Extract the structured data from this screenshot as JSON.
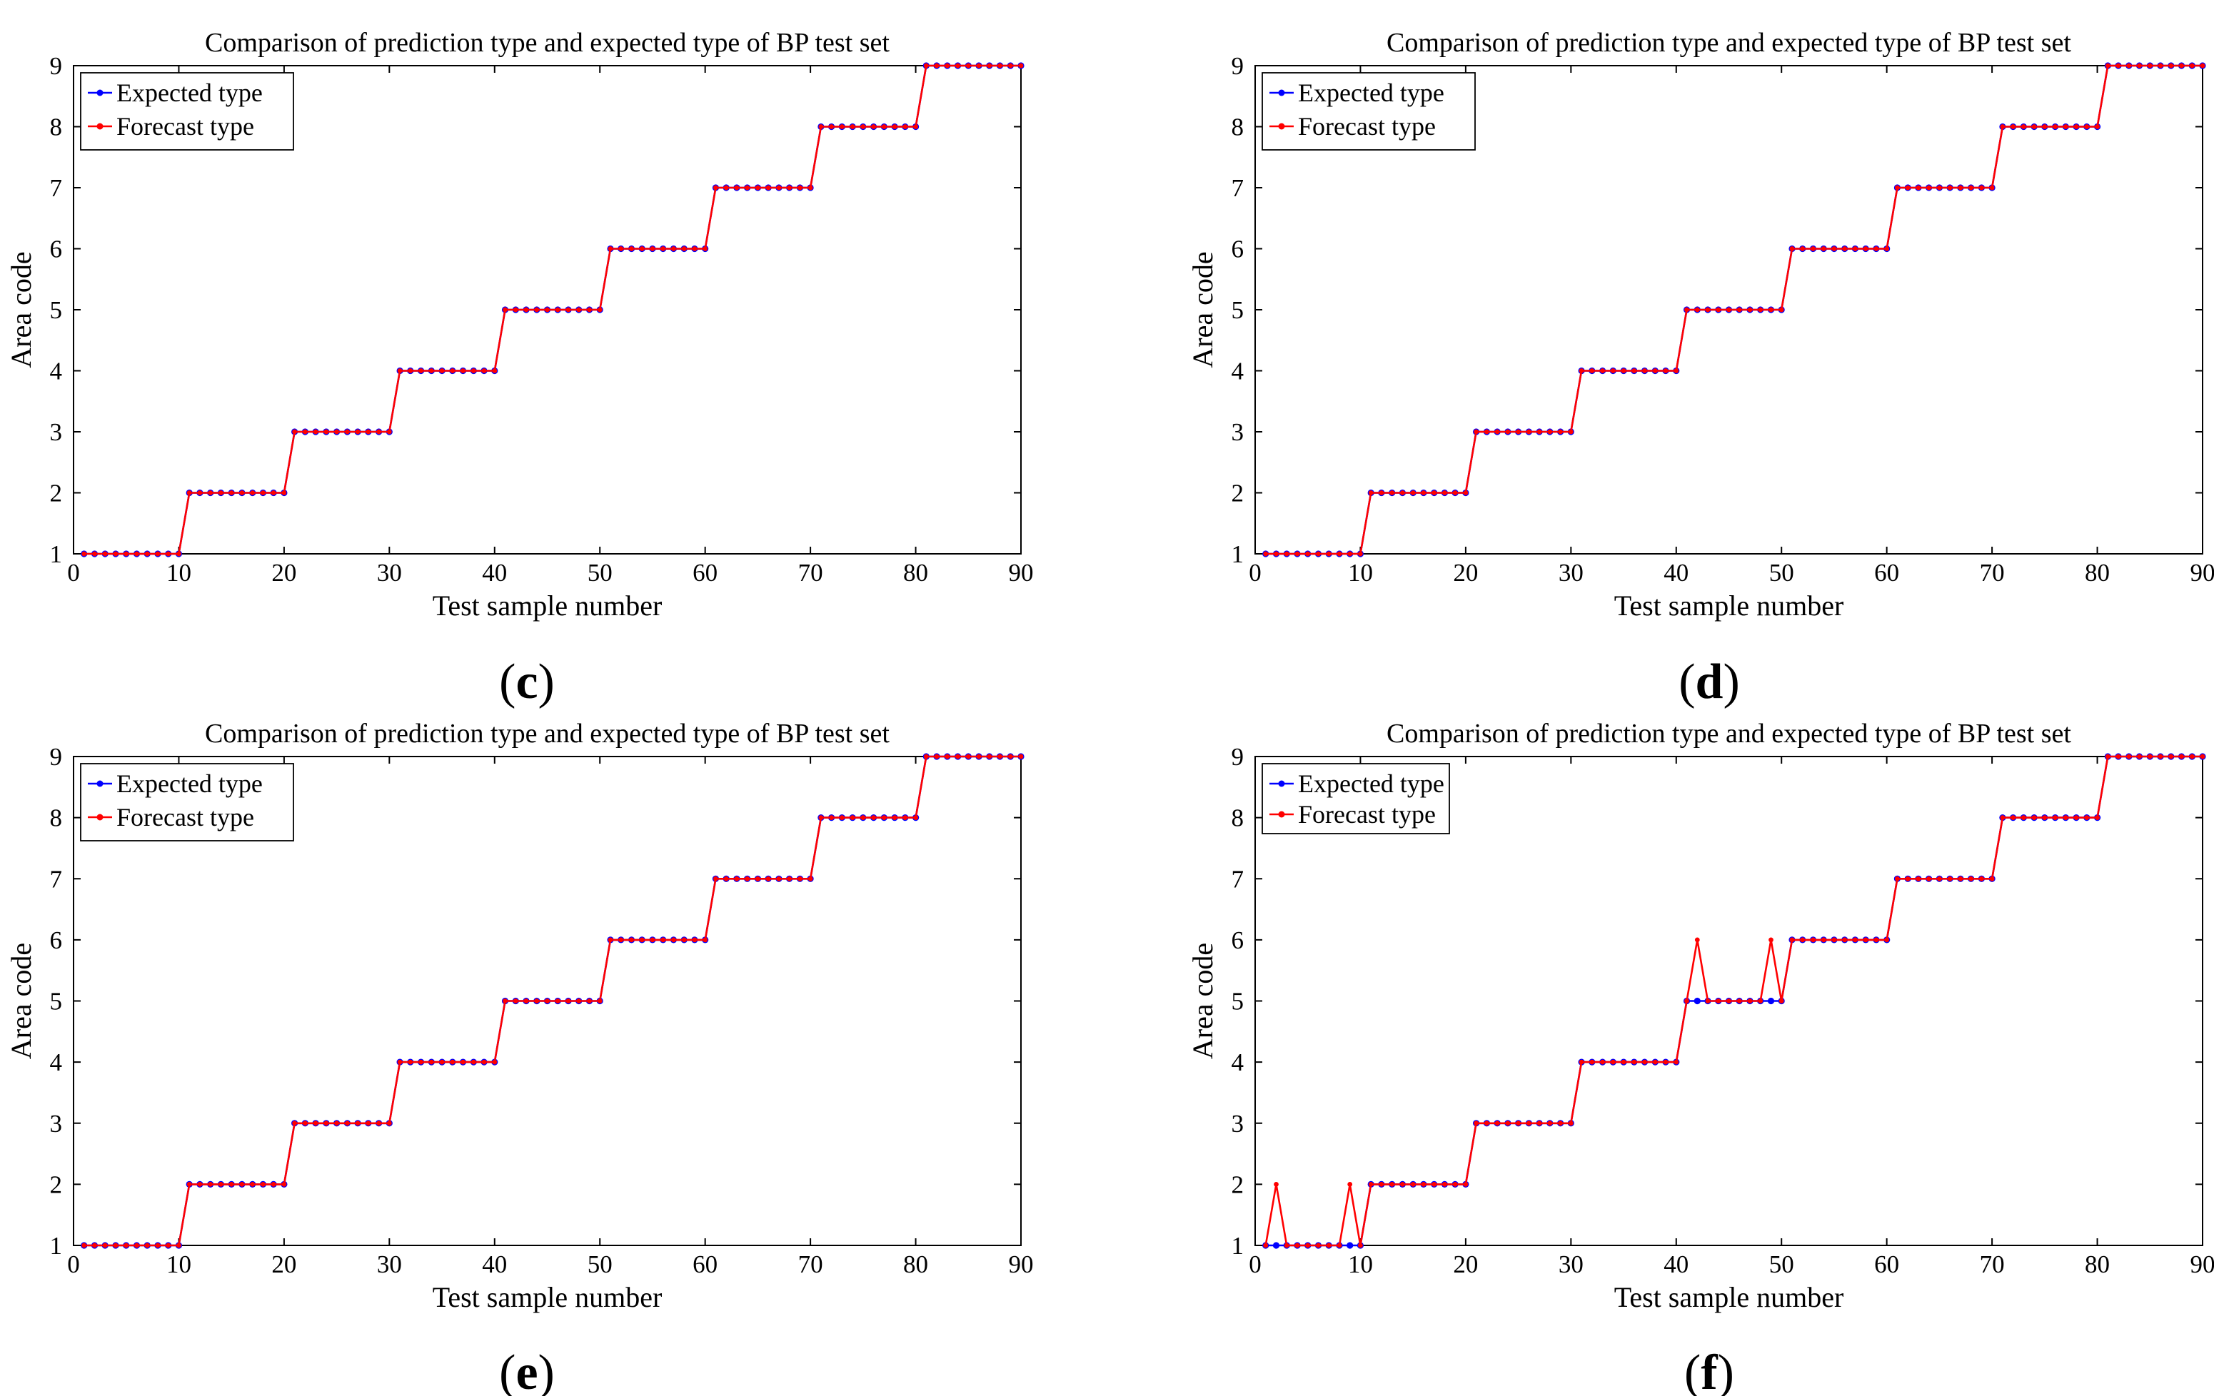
{
  "colors": {
    "expected": "#0000ff",
    "forecast": "#ff0000",
    "axis": "#000000",
    "background": "#ffffff"
  },
  "panel_labels": {
    "c": {
      "open": "(",
      "letter": "c",
      "close": ")"
    },
    "d": {
      "open": "(",
      "letter": "d",
      "close": ")"
    },
    "e": {
      "open": "(",
      "letter": "e",
      "close": ")"
    },
    "f": {
      "open": "(",
      "letter": "f",
      "close": ")"
    }
  },
  "chart_data": [
    {
      "panel": "c",
      "type": "line",
      "title": "Comparison of prediction type and expected type of BP test set",
      "xlabel": "Test sample number",
      "ylabel": "Area code",
      "xlim": [
        0,
        90
      ],
      "ylim": [
        1,
        9
      ],
      "xticks": [
        0,
        10,
        20,
        30,
        40,
        50,
        60,
        70,
        80,
        90
      ],
      "yticks": [
        1,
        2,
        3,
        4,
        5,
        6,
        7,
        8,
        9
      ],
      "grid": false,
      "legend": "top-left",
      "x": [
        1,
        2,
        3,
        4,
        5,
        6,
        7,
        8,
        9,
        10,
        11,
        12,
        13,
        14,
        15,
        16,
        17,
        18,
        19,
        20,
        21,
        22,
        23,
        24,
        25,
        26,
        27,
        28,
        29,
        30,
        31,
        32,
        33,
        34,
        35,
        36,
        37,
        38,
        39,
        40,
        41,
        42,
        43,
        44,
        45,
        46,
        47,
        48,
        49,
        50,
        51,
        52,
        53,
        54,
        55,
        56,
        57,
        58,
        59,
        60,
        61,
        62,
        63,
        64,
        65,
        66,
        67,
        68,
        69,
        70,
        71,
        72,
        73,
        74,
        75,
        76,
        77,
        78,
        79,
        80,
        81,
        82,
        83,
        84,
        85,
        86,
        87,
        88,
        89,
        90
      ],
      "series": [
        {
          "name": "Expected type",
          "color": "#0000ff",
          "values": [
            1,
            1,
            1,
            1,
            1,
            1,
            1,
            1,
            1,
            1,
            2,
            2,
            2,
            2,
            2,
            2,
            2,
            2,
            2,
            2,
            3,
            3,
            3,
            3,
            3,
            3,
            3,
            3,
            3,
            3,
            4,
            4,
            4,
            4,
            4,
            4,
            4,
            4,
            4,
            4,
            5,
            5,
            5,
            5,
            5,
            5,
            5,
            5,
            5,
            5,
            6,
            6,
            6,
            6,
            6,
            6,
            6,
            6,
            6,
            6,
            7,
            7,
            7,
            7,
            7,
            7,
            7,
            7,
            7,
            7,
            8,
            8,
            8,
            8,
            8,
            8,
            8,
            8,
            8,
            8,
            9,
            9,
            9,
            9,
            9,
            9,
            9,
            9,
            9,
            9
          ]
        },
        {
          "name": "Forecast type",
          "color": "#ff0000",
          "values": [
            1,
            1,
            1,
            1,
            1,
            1,
            1,
            1,
            1,
            1,
            2,
            2,
            2,
            2,
            2,
            2,
            2,
            2,
            2,
            2,
            3,
            3,
            3,
            3,
            3,
            3,
            3,
            3,
            3,
            3,
            4,
            4,
            4,
            4,
            4,
            4,
            4,
            4,
            4,
            4,
            5,
            5,
            5,
            5,
            5,
            5,
            5,
            5,
            5,
            5,
            6,
            6,
            6,
            6,
            6,
            6,
            6,
            6,
            6,
            6,
            7,
            7,
            7,
            7,
            7,
            7,
            7,
            7,
            7,
            7,
            8,
            8,
            8,
            8,
            8,
            8,
            8,
            8,
            8,
            8,
            9,
            9,
            9,
            9,
            9,
            9,
            9,
            9,
            9,
            9
          ]
        }
      ]
    },
    {
      "panel": "d",
      "type": "line",
      "title": "Comparison of prediction type and expected type of BP test set",
      "xlabel": "Test sample number",
      "ylabel": "Area code",
      "xlim": [
        0,
        90
      ],
      "ylim": [
        1,
        9
      ],
      "xticks": [
        0,
        10,
        20,
        30,
        40,
        50,
        60,
        70,
        80,
        90
      ],
      "yticks": [
        1,
        2,
        3,
        4,
        5,
        6,
        7,
        8,
        9
      ],
      "grid": false,
      "legend": "top-left",
      "x": [
        1,
        2,
        3,
        4,
        5,
        6,
        7,
        8,
        9,
        10,
        11,
        12,
        13,
        14,
        15,
        16,
        17,
        18,
        19,
        20,
        21,
        22,
        23,
        24,
        25,
        26,
        27,
        28,
        29,
        30,
        31,
        32,
        33,
        34,
        35,
        36,
        37,
        38,
        39,
        40,
        41,
        42,
        43,
        44,
        45,
        46,
        47,
        48,
        49,
        50,
        51,
        52,
        53,
        54,
        55,
        56,
        57,
        58,
        59,
        60,
        61,
        62,
        63,
        64,
        65,
        66,
        67,
        68,
        69,
        70,
        71,
        72,
        73,
        74,
        75,
        76,
        77,
        78,
        79,
        80,
        81,
        82,
        83,
        84,
        85,
        86,
        87,
        88,
        89,
        90
      ],
      "series": [
        {
          "name": "Expected type",
          "color": "#0000ff",
          "values": [
            1,
            1,
            1,
            1,
            1,
            1,
            1,
            1,
            1,
            1,
            2,
            2,
            2,
            2,
            2,
            2,
            2,
            2,
            2,
            2,
            3,
            3,
            3,
            3,
            3,
            3,
            3,
            3,
            3,
            3,
            4,
            4,
            4,
            4,
            4,
            4,
            4,
            4,
            4,
            4,
            5,
            5,
            5,
            5,
            5,
            5,
            5,
            5,
            5,
            5,
            6,
            6,
            6,
            6,
            6,
            6,
            6,
            6,
            6,
            6,
            7,
            7,
            7,
            7,
            7,
            7,
            7,
            7,
            7,
            7,
            8,
            8,
            8,
            8,
            8,
            8,
            8,
            8,
            8,
            8,
            9,
            9,
            9,
            9,
            9,
            9,
            9,
            9,
            9,
            9
          ]
        },
        {
          "name": "Forecast type",
          "color": "#ff0000",
          "values": [
            1,
            1,
            1,
            1,
            1,
            1,
            1,
            1,
            1,
            1,
            2,
            2,
            2,
            2,
            2,
            2,
            2,
            2,
            2,
            2,
            3,
            3,
            3,
            3,
            3,
            3,
            3,
            3,
            3,
            3,
            4,
            4,
            4,
            4,
            4,
            4,
            4,
            4,
            4,
            4,
            5,
            5,
            5,
            5,
            5,
            5,
            5,
            5,
            5,
            5,
            6,
            6,
            6,
            6,
            6,
            6,
            6,
            6,
            6,
            6,
            7,
            7,
            7,
            7,
            7,
            7,
            7,
            7,
            7,
            7,
            8,
            8,
            8,
            8,
            8,
            8,
            8,
            8,
            8,
            8,
            9,
            9,
            9,
            9,
            9,
            9,
            9,
            9,
            9,
            9
          ]
        }
      ]
    },
    {
      "panel": "e",
      "type": "line",
      "title": "Comparison of prediction type and expected type of BP test set",
      "xlabel": "Test sample number",
      "ylabel": "Area code",
      "xlim": [
        0,
        90
      ],
      "ylim": [
        1,
        9
      ],
      "xticks": [
        0,
        10,
        20,
        30,
        40,
        50,
        60,
        70,
        80,
        90
      ],
      "yticks": [
        1,
        2,
        3,
        4,
        5,
        6,
        7,
        8,
        9
      ],
      "grid": false,
      "legend": "top-left",
      "x": [
        1,
        2,
        3,
        4,
        5,
        6,
        7,
        8,
        9,
        10,
        11,
        12,
        13,
        14,
        15,
        16,
        17,
        18,
        19,
        20,
        21,
        22,
        23,
        24,
        25,
        26,
        27,
        28,
        29,
        30,
        31,
        32,
        33,
        34,
        35,
        36,
        37,
        38,
        39,
        40,
        41,
        42,
        43,
        44,
        45,
        46,
        47,
        48,
        49,
        50,
        51,
        52,
        53,
        54,
        55,
        56,
        57,
        58,
        59,
        60,
        61,
        62,
        63,
        64,
        65,
        66,
        67,
        68,
        69,
        70,
        71,
        72,
        73,
        74,
        75,
        76,
        77,
        78,
        79,
        80,
        81,
        82,
        83,
        84,
        85,
        86,
        87,
        88,
        89,
        90
      ],
      "series": [
        {
          "name": "Expected type",
          "color": "#0000ff",
          "values": [
            1,
            1,
            1,
            1,
            1,
            1,
            1,
            1,
            1,
            1,
            2,
            2,
            2,
            2,
            2,
            2,
            2,
            2,
            2,
            2,
            3,
            3,
            3,
            3,
            3,
            3,
            3,
            3,
            3,
            3,
            4,
            4,
            4,
            4,
            4,
            4,
            4,
            4,
            4,
            4,
            5,
            5,
            5,
            5,
            5,
            5,
            5,
            5,
            5,
            5,
            6,
            6,
            6,
            6,
            6,
            6,
            6,
            6,
            6,
            6,
            7,
            7,
            7,
            7,
            7,
            7,
            7,
            7,
            7,
            7,
            8,
            8,
            8,
            8,
            8,
            8,
            8,
            8,
            8,
            8,
            9,
            9,
            9,
            9,
            9,
            9,
            9,
            9,
            9,
            9
          ]
        },
        {
          "name": "Forecast type",
          "color": "#ff0000",
          "values": [
            1,
            1,
            1,
            1,
            1,
            1,
            1,
            1,
            1,
            1,
            2,
            2,
            2,
            2,
            2,
            2,
            2,
            2,
            2,
            2,
            3,
            3,
            3,
            3,
            3,
            3,
            3,
            3,
            3,
            3,
            4,
            4,
            4,
            4,
            4,
            4,
            4,
            4,
            4,
            4,
            5,
            5,
            5,
            5,
            5,
            5,
            5,
            5,
            5,
            5,
            6,
            6,
            6,
            6,
            6,
            6,
            6,
            6,
            6,
            6,
            7,
            7,
            7,
            7,
            7,
            7,
            7,
            7,
            7,
            7,
            8,
            8,
            8,
            8,
            8,
            8,
            8,
            8,
            8,
            8,
            9,
            9,
            9,
            9,
            9,
            9,
            9,
            9,
            9,
            9
          ]
        }
      ]
    },
    {
      "panel": "f",
      "type": "line",
      "title": "Comparison of prediction type and expected type of BP test set",
      "xlabel": "Test sample number",
      "ylabel": "Area code",
      "xlim": [
        0,
        90
      ],
      "ylim": [
        1,
        9
      ],
      "xticks": [
        0,
        10,
        20,
        30,
        40,
        50,
        60,
        70,
        80,
        90
      ],
      "yticks": [
        1,
        2,
        3,
        4,
        5,
        6,
        7,
        8,
        9
      ],
      "grid": false,
      "legend": "top-left",
      "x": [
        1,
        2,
        3,
        4,
        5,
        6,
        7,
        8,
        9,
        10,
        11,
        12,
        13,
        14,
        15,
        16,
        17,
        18,
        19,
        20,
        21,
        22,
        23,
        24,
        25,
        26,
        27,
        28,
        29,
        30,
        31,
        32,
        33,
        34,
        35,
        36,
        37,
        38,
        39,
        40,
        41,
        42,
        43,
        44,
        45,
        46,
        47,
        48,
        49,
        50,
        51,
        52,
        53,
        54,
        55,
        56,
        57,
        58,
        59,
        60,
        61,
        62,
        63,
        64,
        65,
        66,
        67,
        68,
        69,
        70,
        71,
        72,
        73,
        74,
        75,
        76,
        77,
        78,
        79,
        80,
        81,
        82,
        83,
        84,
        85,
        86,
        87,
        88,
        89,
        90
      ],
      "series": [
        {
          "name": "Expected type",
          "color": "#0000ff",
          "values": [
            1,
            1,
            1,
            1,
            1,
            1,
            1,
            1,
            1,
            1,
            2,
            2,
            2,
            2,
            2,
            2,
            2,
            2,
            2,
            2,
            3,
            3,
            3,
            3,
            3,
            3,
            3,
            3,
            3,
            3,
            4,
            4,
            4,
            4,
            4,
            4,
            4,
            4,
            4,
            4,
            5,
            5,
            5,
            5,
            5,
            5,
            5,
            5,
            5,
            5,
            6,
            6,
            6,
            6,
            6,
            6,
            6,
            6,
            6,
            6,
            7,
            7,
            7,
            7,
            7,
            7,
            7,
            7,
            7,
            7,
            8,
            8,
            8,
            8,
            8,
            8,
            8,
            8,
            8,
            8,
            9,
            9,
            9,
            9,
            9,
            9,
            9,
            9,
            9,
            9
          ]
        },
        {
          "name": "Forecast type",
          "color": "#ff0000",
          "values": [
            1,
            2,
            1,
            1,
            1,
            1,
            1,
            1,
            2,
            1,
            2,
            2,
            2,
            2,
            2,
            2,
            2,
            2,
            2,
            2,
            3,
            3,
            3,
            3,
            3,
            3,
            3,
            3,
            3,
            3,
            4,
            4,
            4,
            4,
            4,
            4,
            4,
            4,
            4,
            4,
            5,
            6,
            5,
            5,
            5,
            5,
            5,
            5,
            6,
            5,
            6,
            6,
            6,
            6,
            6,
            6,
            6,
            6,
            6,
            6,
            7,
            7,
            7,
            7,
            7,
            7,
            7,
            7,
            7,
            7,
            8,
            8,
            8,
            8,
            8,
            8,
            8,
            8,
            8,
            8,
            9,
            9,
            9,
            9,
            9,
            9,
            9,
            9,
            9,
            9
          ]
        }
      ]
    }
  ]
}
